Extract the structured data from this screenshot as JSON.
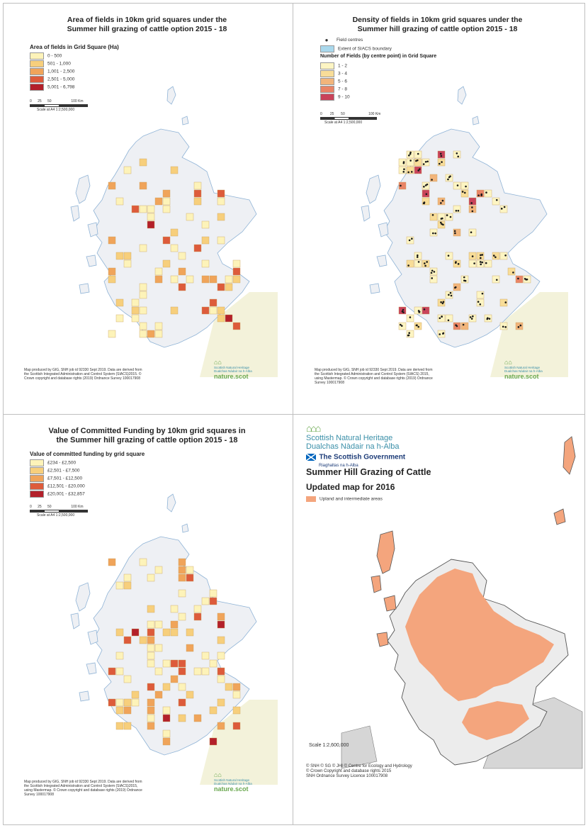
{
  "panel1": {
    "title_line1": "Area of fields in 10km grid squares under the",
    "title_line2": "Summer hill grazing of cattle  option 2015 - 18",
    "legend_title": "Area of fields in Grid Square (Ha)",
    "legend": [
      {
        "label": "0 - 500",
        "color": "#fdf3b9"
      },
      {
        "label": "501 - 1,000",
        "color": "#f7cf7c"
      },
      {
        "label": "1,001 - 2,500",
        "color": "#f0a45a"
      },
      {
        "label": "2,501 - 5,000",
        "color": "#dd5b3b"
      },
      {
        "label": "5,001 - 6,798",
        "color": "#b3202a"
      }
    ],
    "scale_ticks": "0      25      50                    100 Km",
    "scale_text": "Scale at A4 1:2,500,000",
    "credit": "Map produced by GIG, SNH job id 92330 Sept 2019. Data are derived from the Scottish Integrated Administration and Control System (SIACS)2015. © Crown copyright and database rights (2019) Ordnance Survey 100017908",
    "logo_line1": "Scottish Natural Heritage",
    "logo_line2": "Dualchas Nàdair na h-Alba",
    "logo_site": "nature.scot"
  },
  "panel2": {
    "title_line1": "Density of fields in 10km grid squares under the",
    "title_line2": "Summer hill grazing of cattle option 2015 - 18",
    "point_label": "Field centres",
    "boundary_label": "Extent of SIACS boundary",
    "legend_title": "Number of Fields (by centre point) in Grid Square",
    "legend": [
      {
        "label": "1 - 2",
        "color": "#fdf5c3"
      },
      {
        "label": "3 - 4",
        "color": "#f8dd98"
      },
      {
        "label": "5 - 6",
        "color": "#f2b57b"
      },
      {
        "label": "7 - 8",
        "color": "#e98466"
      },
      {
        "label": "9 - 10",
        "color": "#c9435a"
      }
    ],
    "scale_ticks": "0        25       50                        100 Km",
    "scale_text": "Scale at A4 1:2,500,000",
    "credit": "Map produced by GIG, SNH job id 92330 Sept 2019. Data are derived from the Scottish Integrated Administration and Control System (SIACS) 2015, using Mastermap. © Crown copyright and database rights (2019) Ordnance Survey 100017908",
    "logo_line1": "Scottish Natural Heritage",
    "logo_line2": "Dualchas Nàdair na h-Alba",
    "logo_site": "nature.scot"
  },
  "panel3": {
    "title_line1": "Value of Committed Funding by 10km grid squares in",
    "title_line2": "the Summer hill grazing of cattle option 2015 - 18",
    "legend_title": "Value of committed funding by grid square",
    "legend": [
      {
        "label": "£234 - £2,500",
        "color": "#fdf3b9"
      },
      {
        "label": "£2,501 - £7,500",
        "color": "#f7cf7c"
      },
      {
        "label": "£7,501 - £12,500",
        "color": "#f0a45a"
      },
      {
        "label": "£12,501 - £20,000",
        "color": "#dd5b3b"
      },
      {
        "label": "£20,001 - £32,857",
        "color": "#b3202a"
      }
    ],
    "scale_ticks": "0      25      50                    100 Km",
    "scale_text": "Scale at A4 1:2,500,000",
    "credit": "Map produced by GIG, SNH job id 92330 Sept 2019. Data are derived from the Scottish Integrated Administration and Control System (SIACS)2015, using Mastermap. © Crown copyright and database rights (2019) Ordnance Survey 100017908",
    "logo_line1": "Scottish Natural Heritage",
    "logo_line2": "Dualchas Nàdair na h-Alba",
    "logo_site": "nature.scot"
  },
  "panel4": {
    "logo_line1": "Scottish Natural Heritage",
    "logo_line2": "Dualchas Nàdair na h-Alba",
    "gov_line1": "The Scottish Government",
    "gov_line2": "Riaghaltas na h-Alba",
    "title": "Summer Hill Grazing of Cattle",
    "subtitle": "Updated map for 2016",
    "legend_label": "Upland and intermediate areas",
    "legend_color": "#f4a57d",
    "scale_text": "Scale   1:2,600,000",
    "credit_line1": "© SNH © SG © JHI © Centre for Ecology and Hydrology",
    "credit_line2": "© Crown Copyright and database rights 2015",
    "credit_line3": "SNH Ordnance Survey Licence 100017908"
  }
}
